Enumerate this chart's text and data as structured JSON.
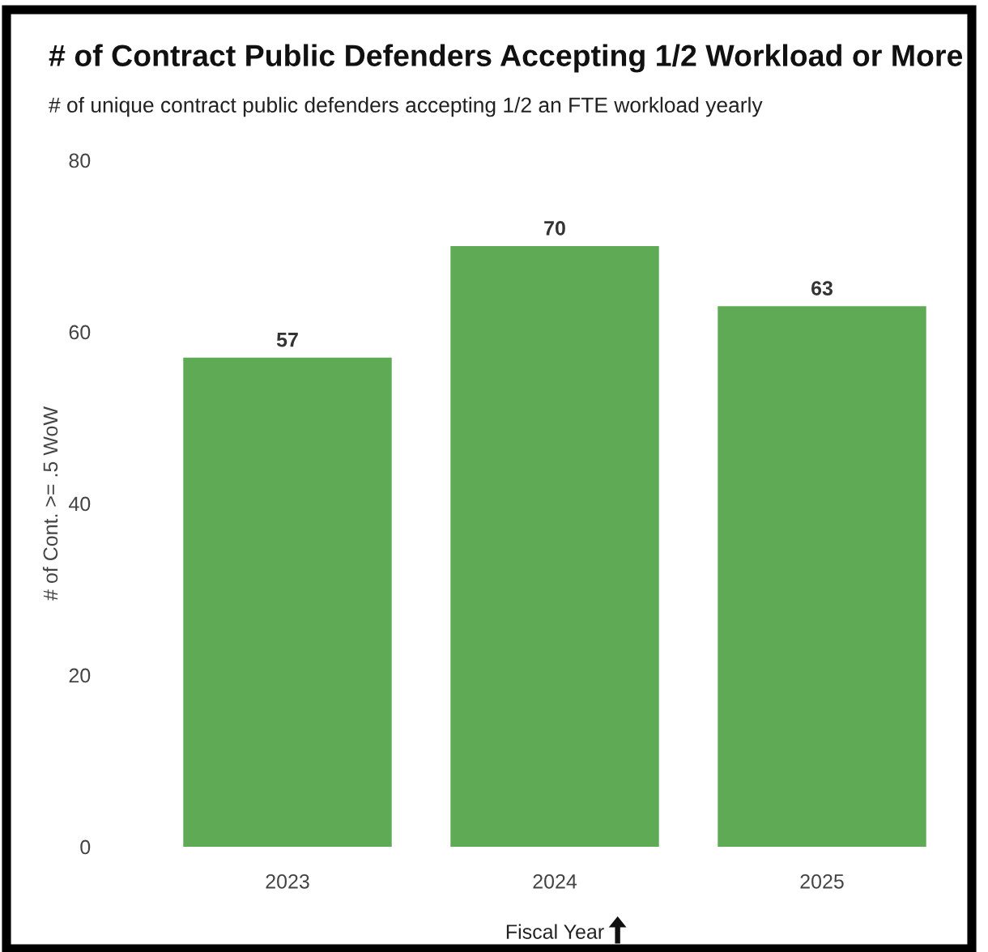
{
  "chart_data": {
    "type": "bar",
    "title": "# of Contract Public Defenders Accepting 1/2 Workload or More",
    "subtitle": "# of unique contract public defenders accepting 1/2 an FTE workload yearly",
    "xlabel": "Fiscal Year",
    "ylabel": "# of Cont. >= .5 WoW",
    "categories": [
      "2023",
      "2024",
      "2025"
    ],
    "values": [
      57,
      70,
      63
    ],
    "color": "#5faa55",
    "ylim": [
      0,
      80
    ],
    "yticks": [
      0,
      20,
      40,
      60,
      80
    ],
    "data_labels": true,
    "grid": false,
    "legend": false
  }
}
